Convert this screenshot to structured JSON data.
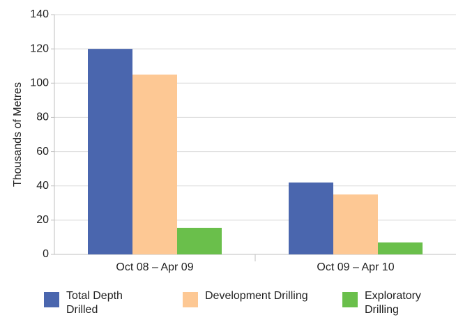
{
  "chart_data": {
    "type": "bar",
    "y_label": "Thousands of Metres",
    "categories": [
      "Oct 08 – Apr 09",
      "Oct 09 – Apr 10"
    ],
    "series": [
      {
        "name": "Total Depth Drilled",
        "color": "#4a66ae",
        "values": [
          120,
          42
        ]
      },
      {
        "name": "Development Drilling",
        "color": "#fdc894",
        "values": [
          105,
          35
        ]
      },
      {
        "name": "Exploratory Drilling",
        "color": "#6abf4b",
        "values": [
          15.5,
          7
        ]
      }
    ],
    "ylim": [
      0,
      140
    ],
    "yticks": [
      0,
      20,
      40,
      60,
      80,
      100,
      120,
      140
    ],
    "grid": true,
    "legend": "bottom"
  }
}
